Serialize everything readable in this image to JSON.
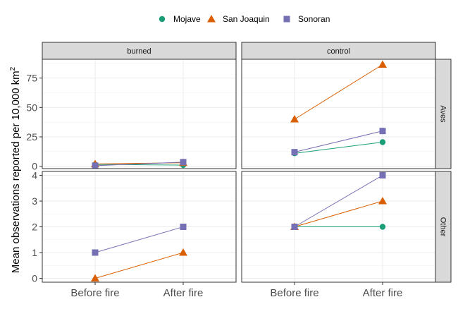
{
  "chart_data": {
    "type": "line",
    "title": "",
    "ylabel": "Mean observations reported per 10,000 km²",
    "ylabel_main": "Mean observations reported per 10,000 km",
    "ylabel_sup": "2",
    "xlabel": "",
    "categories": [
      "Before fire",
      "After fire"
    ],
    "facet_columns": [
      "burned",
      "control"
    ],
    "facet_rows": [
      "Aves",
      "Other"
    ],
    "legend": {
      "position": "top",
      "entries": [
        {
          "name": "Mojave",
          "shape": "circle",
          "color": "#1b9e77"
        },
        {
          "name": "San Joaquin",
          "shape": "triangle",
          "color": "#d95f02"
        },
        {
          "name": "Sonoran",
          "shape": "square",
          "color": "#7570b3"
        }
      ]
    },
    "grid": true,
    "panels": [
      {
        "column": "burned",
        "row": "Aves",
        "series": [
          {
            "name": "Mojave",
            "values": [
              1.5,
              1
            ]
          },
          {
            "name": "San Joaquin",
            "values": [
              2,
              3
            ]
          },
          {
            "name": "Sonoran",
            "values": [
              0.5,
              3.5
            ]
          }
        ]
      },
      {
        "column": "control",
        "row": "Aves",
        "series": [
          {
            "name": "Mojave",
            "values": [
              11,
              20.5
            ]
          },
          {
            "name": "San Joaquin",
            "values": [
              40,
              86.5
            ]
          },
          {
            "name": "Sonoran",
            "values": [
              12,
              30
            ]
          }
        ]
      },
      {
        "column": "burned",
        "row": "Other",
        "series": [
          {
            "name": "San Joaquin",
            "values": [
              0,
              1
            ]
          },
          {
            "name": "Sonoran",
            "values": [
              1,
              2
            ]
          }
        ]
      },
      {
        "column": "control",
        "row": "Other",
        "series": [
          {
            "name": "Mojave",
            "values": [
              2,
              2
            ]
          },
          {
            "name": "San Joaquin",
            "values": [
              2,
              3
            ]
          },
          {
            "name": "Sonoran",
            "values": [
              2,
              4
            ]
          }
        ]
      }
    ],
    "rows_axes": [
      {
        "row": "Aves",
        "ylim": [
          -2,
          91
        ],
        "ticks": [
          0,
          25,
          50,
          75
        ],
        "tick_labels": [
          "0",
          "25",
          "50",
          "75"
        ]
      },
      {
        "row": "Other",
        "ylim": [
          -0.15,
          4.15
        ],
        "ticks": [
          0,
          1,
          2,
          3,
          4
        ],
        "tick_labels": [
          "0",
          "1",
          "2",
          "3",
          "4"
        ]
      }
    ]
  }
}
